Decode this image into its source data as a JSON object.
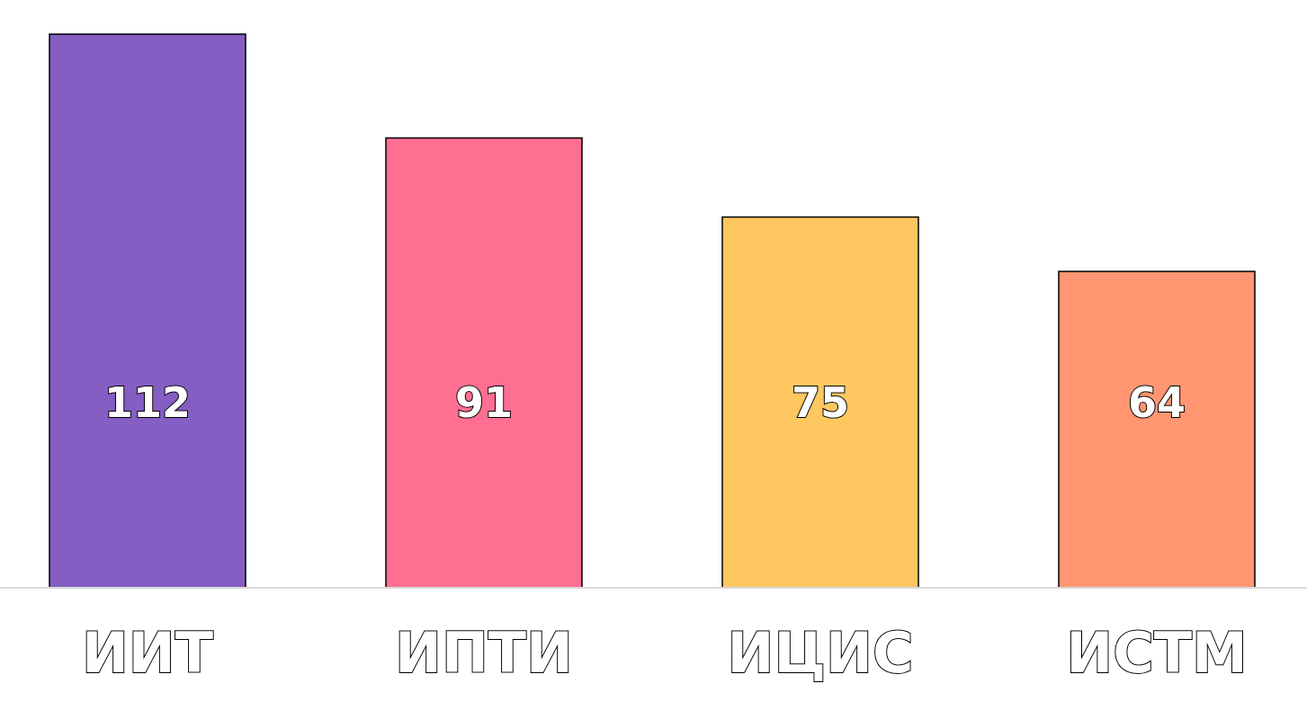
{
  "chart_data": {
    "type": "bar",
    "categories": [
      "ИИТ",
      "ИПТИ",
      "ИЦИС",
      "ИСТМ"
    ],
    "values": [
      112,
      91,
      75,
      64
    ],
    "colors": [
      "#845ec2",
      "#ff6f91",
      "#ffc75f",
      "#ff9671"
    ],
    "data_labels": true
  }
}
